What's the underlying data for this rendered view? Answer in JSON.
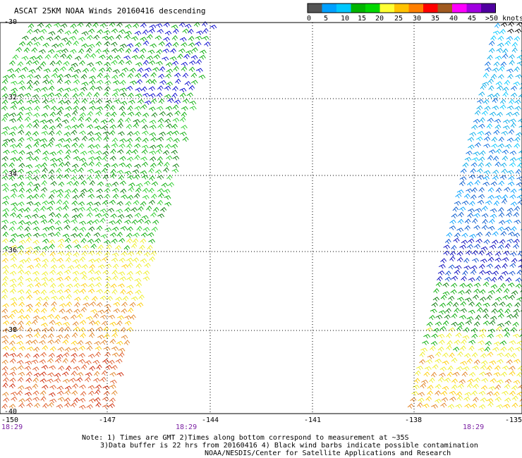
{
  "title": "ASCAT 25KM NOAA Winds 20160416 descending",
  "colorbar": {
    "ticks": [
      "0",
      "5",
      "10",
      "15",
      "20",
      "25",
      "30",
      "35",
      "40",
      "45",
      ">50 knots"
    ],
    "colors": [
      "#555555",
      "#00a0ff",
      "#00c8ff",
      "#00b400",
      "#00d800",
      "#ffff33",
      "#ffc200",
      "#ff7f00",
      "#ff0000",
      "#a05a20",
      "#ff00ff",
      "#a000e0",
      "#5000a0"
    ]
  },
  "lat_labels": [
    "-30",
    "-32",
    "-34",
    "-36",
    "-38",
    "-40"
  ],
  "lon_labels": [
    "-150",
    "-147",
    "-144",
    "-141",
    "-138",
    "-135"
  ],
  "times": [
    "18:29",
    "18:29",
    "18:29"
  ],
  "notes": {
    "line1": "Note: 1) Times are GMT 2)Times along bottom correspond to measurement at ~35S",
    "line2": "3)Data buffer is 22 hrs from 20160416 4) Black wind barbs indicate possible contamination",
    "line3": "NOAA/NESDIS/Center for Satellite Applications and Research"
  },
  "wind_color_scale_knots": {
    "blue": "10-15",
    "cyan": "5-10",
    "green": "15-20",
    "dark_green": "15-20",
    "yellow": "20-25",
    "orange": "25-30",
    "red": "30-35"
  }
}
